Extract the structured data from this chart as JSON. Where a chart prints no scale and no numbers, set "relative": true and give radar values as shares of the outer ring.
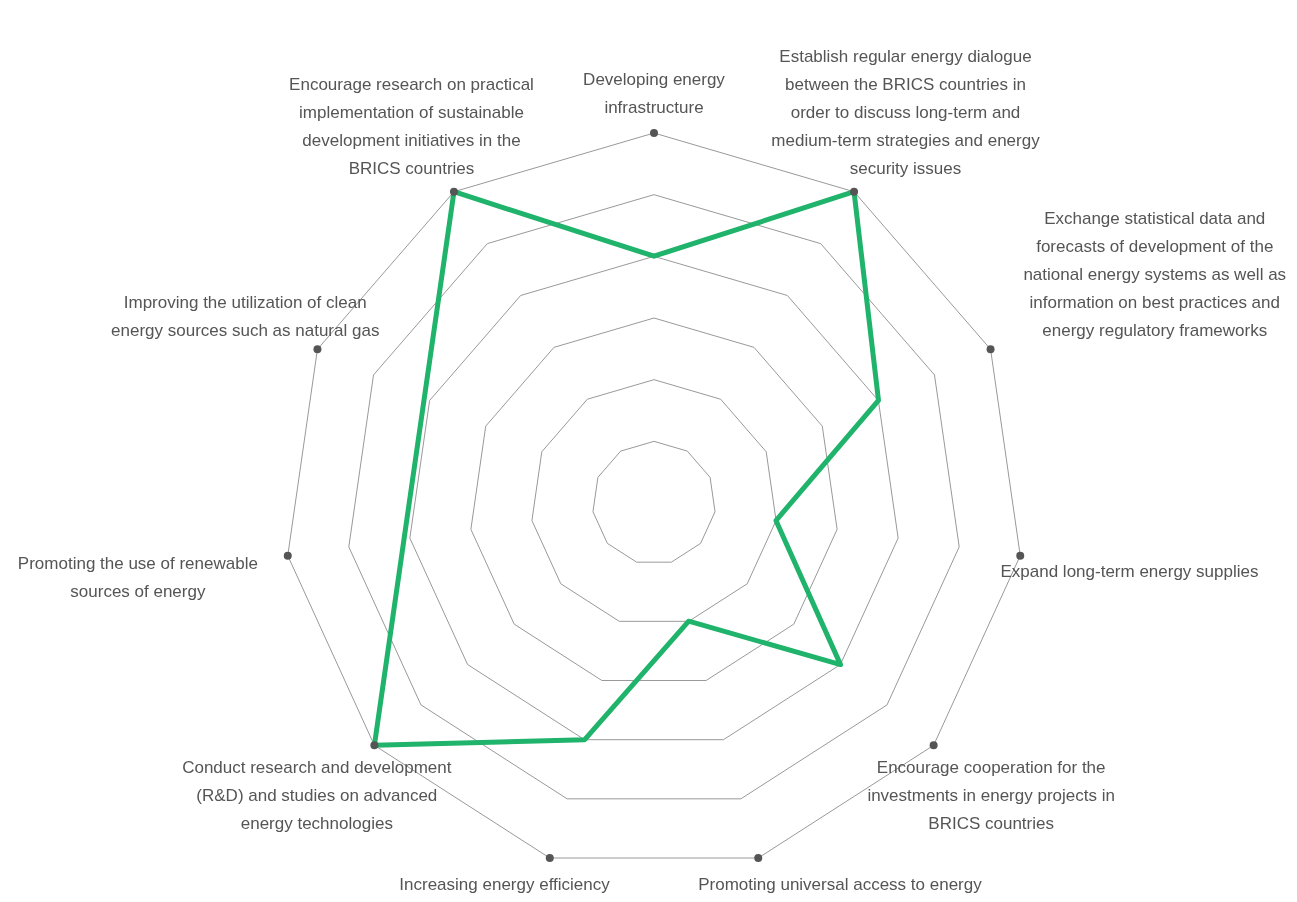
{
  "chart_data": {
    "type": "radar",
    "relative": true,
    "categories": [
      "Developing energy infrastructure",
      "Establish regular energy dialogue between the BRICS countries in order to discuss long-term and medium-term strategies and energy security issues",
      "Exchange statistical data and forecasts of development of the national energy systems as well as information on best practices and energy regulatory frameworks",
      "Expand long-term energy supplies",
      "Encourage cooperation for the investments in energy projects in BRICS countries",
      "Promoting universal access to energy",
      "Increasing energy efficiency",
      "Conduct research and development (R&D) and studies on advanced energy technologies",
      "Promoting the use of renewable sources of energy",
      "Improving the utilization of clean energy sources such as natural gas",
      "Encourage research on practical implementation of sustainable development initiatives in the BRICS countries"
    ],
    "series": [
      {
        "color": "#1fb36b",
        "values": [
          0.667,
          1,
          0.667,
          0.333,
          0.667,
          0.333,
          0.667,
          1,
          null,
          null,
          1
        ]
      }
    ]
  }
}
